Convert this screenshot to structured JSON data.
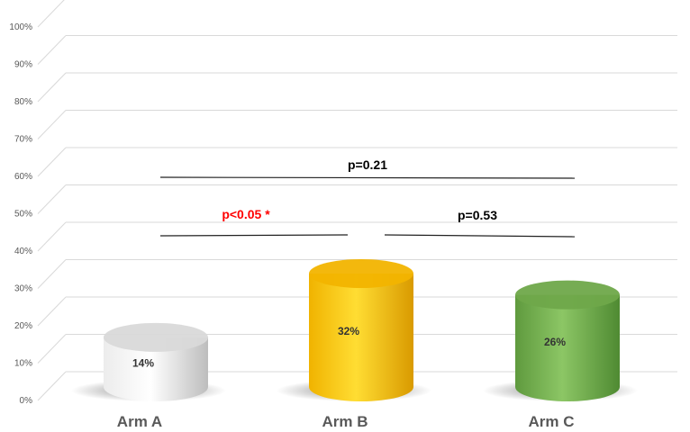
{
  "chart_data": {
    "type": "bar",
    "style": "3d-cylinder",
    "categories": [
      "Arm A",
      "Arm B",
      "Arm C"
    ],
    "values": [
      14,
      32,
      26
    ],
    "value_labels": [
      "14%",
      "32%",
      "26%"
    ],
    "colors": [
      "#d9d9d9",
      "#f2b400",
      "#6fa84a"
    ],
    "ylim": [
      0,
      100
    ],
    "yticks": [
      "0%",
      "10%",
      "20%",
      "30%",
      "40%",
      "50%",
      "60%",
      "70%",
      "80%",
      "90%",
      "100%"
    ],
    "grid": true,
    "title": "",
    "xlabel": "",
    "ylabel": "",
    "comparisons": [
      {
        "from": "Arm A",
        "to": "Arm C",
        "label": "p=0.21",
        "color": "#000000"
      },
      {
        "from": "Arm A",
        "to": "Arm B",
        "label": "p<0.05 *",
        "color": "#ff0000"
      },
      {
        "from": "Arm B",
        "to": "Arm C",
        "label": "p=0.53",
        "color": "#000000"
      }
    ]
  }
}
